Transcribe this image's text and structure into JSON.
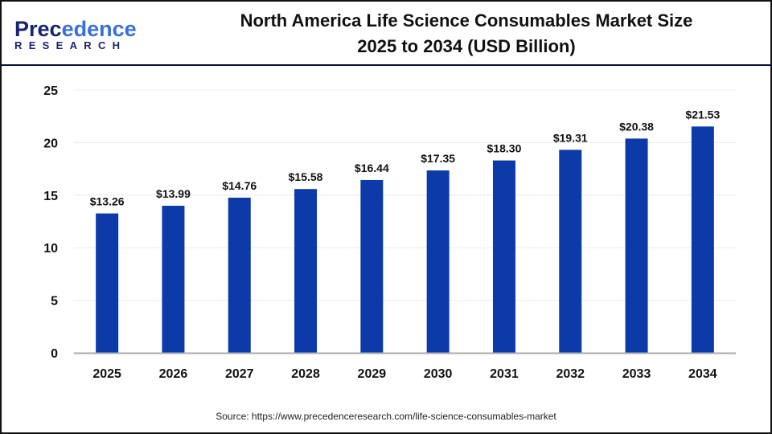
{
  "logo": {
    "line1_a": "Prec",
    "line1_b": "edence",
    "line2": "RESEARCH"
  },
  "title": {
    "line1": "North America Life Science Consumables Market Size",
    "line2": "2025 to 2034 (USD Billion)"
  },
  "source": "Source: https://www.precedenceresearch.com/life-science-consumables-market",
  "colors": {
    "bar": "#0d3aa9",
    "header_line": "#0a0f3a"
  },
  "chart_data": {
    "type": "bar",
    "title": "North America Life Science Consumables Market Size 2025 to 2034 (USD Billion)",
    "categories": [
      "2025",
      "2026",
      "2027",
      "2028",
      "2029",
      "2030",
      "2031",
      "2032",
      "2033",
      "2034"
    ],
    "values": [
      13.26,
      13.99,
      14.76,
      15.58,
      16.44,
      17.35,
      18.3,
      19.31,
      20.38,
      21.53
    ],
    "labels": [
      "$13.26",
      "$13.99",
      "$14.76",
      "$15.58",
      "$16.44",
      "$17.35",
      "$18.30",
      "$19.31",
      "$20.38",
      "$21.53"
    ],
    "ylim": [
      0,
      25
    ],
    "yticks": [
      0,
      5,
      10,
      15,
      20,
      25
    ],
    "grid": true,
    "xlabel": "",
    "ylabel": ""
  }
}
